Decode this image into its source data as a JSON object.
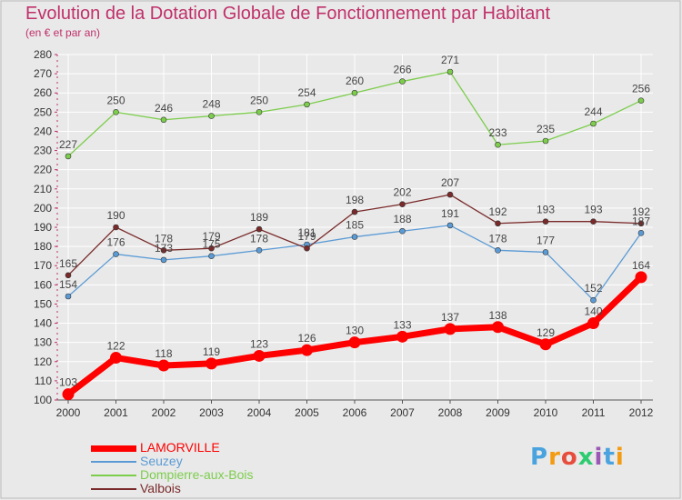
{
  "chart_data": {
    "type": "line",
    "title": "Evolution de la Dotation Globale de Fonctionnement par Habitant",
    "subtitle": "(en € et par an)",
    "x": [
      "2000",
      "2001",
      "2002",
      "2003",
      "2004",
      "2005",
      "2006",
      "2007",
      "2008",
      "2009",
      "2010",
      "2011",
      "2012"
    ],
    "ylim": [
      100,
      280
    ],
    "yticks": [
      100,
      110,
      120,
      130,
      140,
      150,
      160,
      170,
      180,
      190,
      200,
      210,
      220,
      230,
      240,
      250,
      260,
      270,
      280
    ],
    "grid": true,
    "legend_position": "bottom-left",
    "series": [
      {
        "name": "LAMORVILLE",
        "color": "#ff0000",
        "values": [
          103,
          122,
          118,
          119,
          123,
          126,
          130,
          133,
          137,
          138,
          129,
          140,
          164
        ]
      },
      {
        "name": "Seuzey",
        "color": "#5b9bd5",
        "values": [
          154,
          176,
          173,
          175,
          178,
          181,
          185,
          188,
          191,
          178,
          177,
          152,
          187
        ]
      },
      {
        "name": "Dompierre-aux-Bois",
        "color": "#7ccd4c",
        "values": [
          227,
          250,
          246,
          248,
          250,
          254,
          260,
          266,
          271,
          233,
          235,
          244,
          256
        ]
      },
      {
        "name": "Valbois",
        "color": "#7a2a2a",
        "values": [
          165,
          190,
          178,
          179,
          189,
          179,
          198,
          202,
          207,
          192,
          193,
          193,
          192
        ]
      }
    ],
    "data_labels": {
      "LAMORVILLE": [
        "103",
        "122",
        "118",
        "119",
        "123",
        "126",
        "130",
        "133",
        "137",
        "138",
        "129",
        "140",
        "164"
      ],
      "Seuzey": [
        "154",
        "176",
        "173",
        "175",
        "178",
        "181",
        "185",
        "188",
        "191",
        "178",
        "177",
        "152",
        "187"
      ],
      "Dompierre-aux-Bois": [
        "227",
        "250",
        "246",
        "248",
        "250",
        "254",
        "260",
        "266",
        "271",
        "233",
        "235",
        "244",
        "256"
      ],
      "Valbois": [
        "165",
        "190",
        "178",
        "179",
        "189",
        "179",
        "198",
        "202",
        "207",
        "192",
        "193",
        "193",
        "192"
      ]
    }
  },
  "logo": {
    "text": "Proxiti",
    "colors": [
      "#4aa3df",
      "#f39c12",
      "#e74c3c",
      "#2ecc71",
      "#9b59b6",
      "#4aa3df",
      "#f39c12"
    ]
  }
}
